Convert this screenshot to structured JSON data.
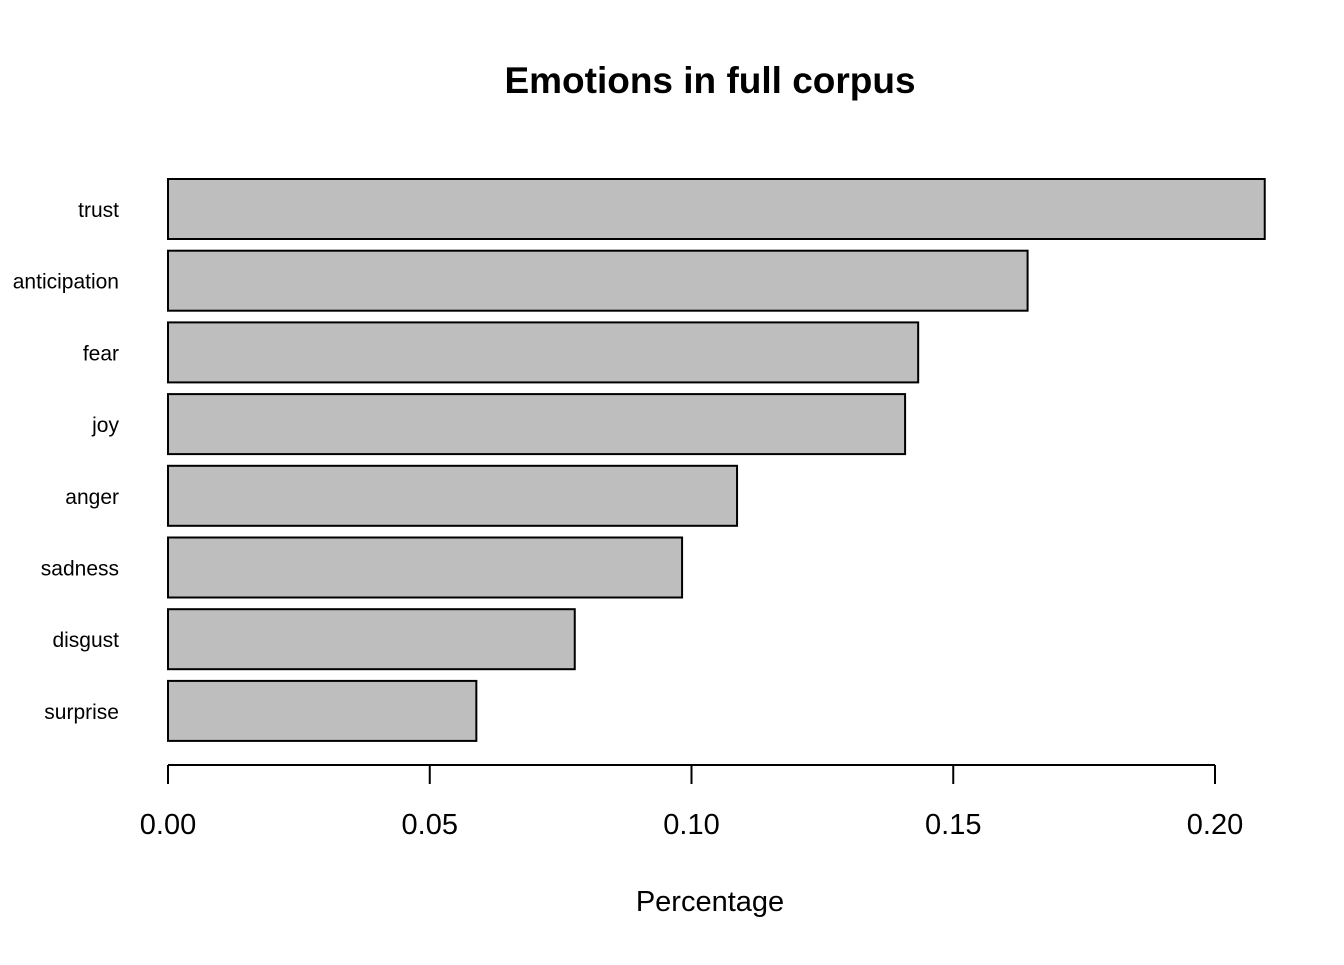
{
  "chart_data": {
    "type": "bar",
    "orientation": "horizontal",
    "title": "Emotions in full corpus",
    "xlabel": "Percentage",
    "ylabel": "",
    "categories": [
      "trust",
      "anticipation",
      "fear",
      "joy",
      "anger",
      "sadness",
      "disgust",
      "surprise"
    ],
    "values": [
      0.2095,
      0.1642,
      0.1433,
      0.1408,
      0.1087,
      0.0982,
      0.0777,
      0.0589
    ],
    "xlim": [
      0,
      0.2
    ],
    "xticks": [
      0.0,
      0.05,
      0.1,
      0.15,
      0.2
    ],
    "xtick_labels": [
      "0.00",
      "0.05",
      "0.10",
      "0.15",
      "0.20"
    ],
    "bar_color": "#bebebe",
    "bar_edge_color": "#000000",
    "grid": false,
    "legend": "none"
  }
}
